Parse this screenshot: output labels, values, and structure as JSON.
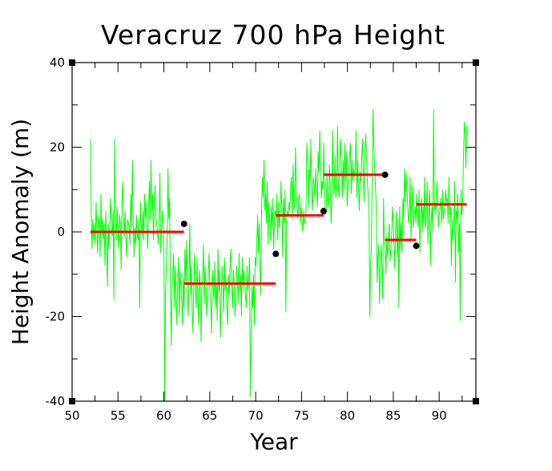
{
  "chart_data": {
    "type": "line",
    "title": "Veracruz 700 hPa Height",
    "xlabel": "Year",
    "ylabel": "Height Anomaly (m)",
    "xlim": [
      50,
      94
    ],
    "ylim": [
      -40,
      40
    ],
    "x_ticks": [
      50,
      55,
      60,
      65,
      70,
      75,
      80,
      85,
      90
    ],
    "y_ticks": [
      -40,
      -20,
      0,
      20,
      40
    ],
    "grid": false,
    "legend": "none",
    "colors": {
      "monthly_series": "#00ff00",
      "segment_means": "#ff0000",
      "change_points": "#000000",
      "axes": "#000000"
    },
    "series": [
      {
        "style": "line",
        "x_start": 52.0,
        "x_end": 93.0,
        "values": [
          22,
          4,
          -4,
          3,
          -2,
          2,
          -3,
          7,
          0,
          -5,
          4,
          1,
          -6,
          9,
          -1,
          3,
          -2,
          2,
          -8,
          5,
          -3,
          -13,
          2,
          -4,
          3,
          8,
          1,
          -1,
          5,
          -16,
          22,
          3,
          -2,
          6,
          1,
          -4,
          4,
          2,
          -9,
          7,
          12,
          3,
          -1,
          5,
          -2,
          -6,
          3,
          2,
          1,
          -3,
          9,
          1,
          17,
          2,
          -6,
          1,
          -3,
          4,
          -1,
          -2,
          3,
          -18,
          7,
          2,
          -1,
          5,
          -2,
          9,
          3,
          7,
          1,
          -4,
          6,
          12,
          3,
          17,
          5,
          9,
          -2,
          6,
          11,
          4,
          2,
          0,
          -3,
          1,
          14,
          -5,
          0,
          5,
          2,
          -6,
          -41,
          -15,
          -8,
          -2,
          15,
          3,
          8,
          -12,
          -27,
          -14,
          -10,
          -5,
          -18,
          -8,
          -15,
          -22,
          -12,
          -6,
          -20,
          -9,
          -13,
          -16,
          -22,
          -11,
          -18,
          -4,
          -12,
          -2,
          -14,
          -20,
          -11,
          2,
          -15,
          -8,
          -19,
          -24,
          -12,
          -5,
          -14,
          -18,
          -6,
          -15,
          -22,
          -9,
          -12,
          -26,
          -14,
          -10,
          -3,
          -17,
          -8,
          -12,
          -20,
          -15,
          -10,
          -5,
          -14,
          -18,
          -24,
          -9,
          -13,
          -16,
          -7,
          -18,
          -12,
          -21,
          -4,
          -14,
          -9,
          -25,
          -16,
          -8,
          -12,
          -19,
          -6,
          -14,
          -11,
          -18,
          -22,
          -10,
          -15,
          -7,
          -4,
          -13,
          -18,
          -9,
          -12,
          -20,
          -15,
          -8,
          -11,
          -17,
          -5,
          -14,
          -10,
          -20,
          -6,
          -13,
          -9,
          -12,
          -15,
          -18,
          -8,
          -14,
          -11,
          -6,
          -39,
          -27,
          -13,
          -18,
          -10,
          -22,
          -6,
          -8,
          -3,
          4,
          -5,
          2,
          -9,
          -15,
          6,
          13,
          8,
          17,
          5,
          9,
          2,
          12,
          -3,
          7,
          3,
          -2,
          6,
          1,
          8,
          -4,
          4,
          5,
          3,
          9,
          -2,
          7,
          1,
          4,
          12,
          6,
          -6,
          8,
          2,
          10,
          -19,
          3,
          5,
          4,
          7,
          5,
          11,
          13,
          3,
          16,
          5,
          8,
          20,
          10,
          6,
          3,
          8,
          9,
          2,
          6,
          3,
          0,
          5,
          2,
          3,
          5,
          21,
          17,
          6,
          15,
          12,
          22,
          9,
          5,
          13,
          11,
          8,
          15,
          10,
          6,
          19,
          14,
          24,
          17,
          8,
          12,
          10,
          21,
          9,
          4,
          5,
          14,
          6,
          7,
          16,
          11,
          2,
          8,
          24,
          10,
          9,
          18,
          8,
          11,
          25,
          11,
          8,
          18,
          22,
          14,
          8,
          17,
          10,
          21,
          12,
          19,
          6,
          10,
          14,
          18,
          21,
          9,
          17,
          12,
          15,
          13,
          15,
          24,
          8,
          17,
          10,
          5,
          14,
          12,
          18,
          22,
          14,
          7,
          19,
          23,
          17,
          12,
          9,
          4,
          -20,
          -8,
          -3,
          14,
          29,
          20,
          15,
          11,
          6,
          -12,
          -6,
          -3,
          -17,
          -9,
          -3,
          -8,
          -16,
          8,
          -2,
          -4,
          -10,
          -1,
          -6,
          -2,
          2,
          -7,
          -4,
          -1,
          6,
          2,
          -3,
          -9,
          1,
          5,
          -6,
          3,
          -18,
          6,
          -4,
          2,
          -5,
          8,
          3,
          15,
          7,
          14,
          10,
          6,
          2,
          4,
          13,
          -2,
          6,
          11,
          1,
          4,
          6,
          2,
          9,
          3,
          1,
          10,
          -5,
          4,
          8,
          0,
          6,
          2,
          13,
          1,
          4,
          12,
          -3,
          5,
          10,
          -8,
          2,
          6,
          0,
          29,
          5,
          7,
          4,
          12,
          8,
          1,
          4,
          6,
          8,
          2,
          10,
          3,
          5,
          6,
          10,
          7,
          8,
          2,
          13,
          4,
          6,
          -8,
          3,
          -2,
          1,
          12,
          -12,
          5,
          3,
          9,
          -5,
          2,
          -21,
          10,
          4,
          7,
          18,
          26,
          23,
          15,
          25
        ]
      },
      {
        "style": "step",
        "segments": [
          {
            "x_start": 52.0,
            "x_end": 62.2,
            "y": 0.0
          },
          {
            "x_start": 62.2,
            "x_end": 72.2,
            "y": -12.2
          },
          {
            "x_start": 72.2,
            "x_end": 77.4,
            "y": 3.9
          },
          {
            "x_start": 77.4,
            "x_end": 84.1,
            "y": 13.5
          },
          {
            "x_start": 84.1,
            "x_end": 87.5,
            "y": -1.9
          },
          {
            "x_start": 87.5,
            "x_end": 93.0,
            "y": 6.5
          }
        ]
      },
      {
        "style": "points",
        "x": [
          62.2,
          72.2,
          77.4,
          84.1,
          87.5
        ],
        "y": [
          1.9,
          -5.2,
          4.9,
          13.5,
          -3.3
        ]
      }
    ]
  }
}
